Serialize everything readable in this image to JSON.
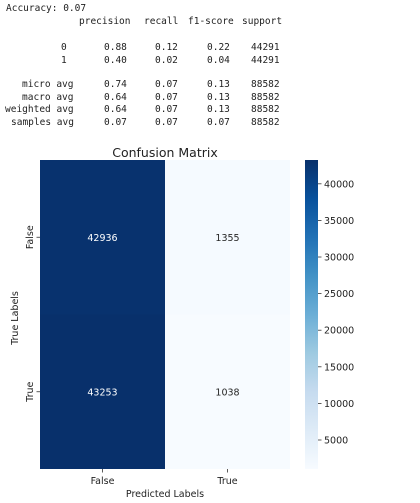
{
  "report": {
    "accuracy_line": "Accuracy: 0.07",
    "headers": [
      "precision",
      "recall",
      "f1-score",
      "support"
    ],
    "rows": [
      {
        "label": "0",
        "values": [
          "0.88",
          "0.12",
          "0.22",
          "44291"
        ]
      },
      {
        "label": "1",
        "values": [
          "0.40",
          "0.02",
          "0.04",
          "44291"
        ]
      },
      {
        "label": "micro avg",
        "values": [
          "0.74",
          "0.07",
          "0.13",
          "88582"
        ]
      },
      {
        "label": "macro avg",
        "values": [
          "0.64",
          "0.07",
          "0.13",
          "88582"
        ]
      },
      {
        "label": "weighted avg",
        "values": [
          "0.64",
          "0.07",
          "0.13",
          "88582"
        ]
      },
      {
        "label": "samples avg",
        "values": [
          "0.07",
          "0.07",
          "0.07",
          "88582"
        ]
      }
    ]
  },
  "chart_data": {
    "type": "heatmap",
    "title": "Confusion Matrix",
    "xlabel": "Predicted Labels",
    "ylabel": "True Labels",
    "x_categories": [
      "False",
      "True"
    ],
    "y_categories": [
      "False",
      "True"
    ],
    "values": [
      [
        42936,
        1355
      ],
      [
        43253,
        1038
      ]
    ],
    "colormap": "Blues",
    "colors": {
      "low": "#f7fbff",
      "mid": "#6baed6",
      "high": "#08306b"
    },
    "colorbar": {
      "range": [
        1038,
        43253
      ],
      "ticks": [
        5000,
        10000,
        15000,
        20000,
        25000,
        30000,
        35000,
        40000
      ]
    }
  }
}
